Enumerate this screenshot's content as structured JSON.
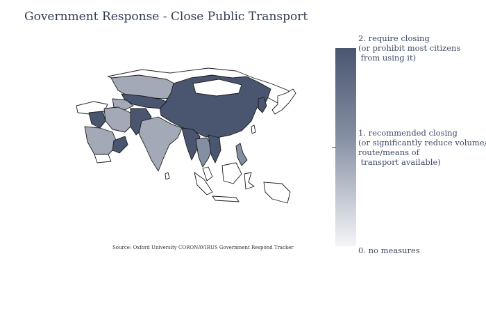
{
  "title": "Government Response - Close Public Transport",
  "source": "Source:  Oxford University CORONAVIRUS Government Respond Tracker",
  "colorbar": {
    "labels": [
      "2. require closing\n(or prohibit most citizens\n from using it)",
      "1. recommended closing\n(or significantly reduce volume/\nroute/means of\n transport available)",
      "0. no measures"
    ],
    "colors": {
      "high": "#4a5570",
      "mid": "#858fa3",
      "low": "#f4f5f8"
    }
  }
}
